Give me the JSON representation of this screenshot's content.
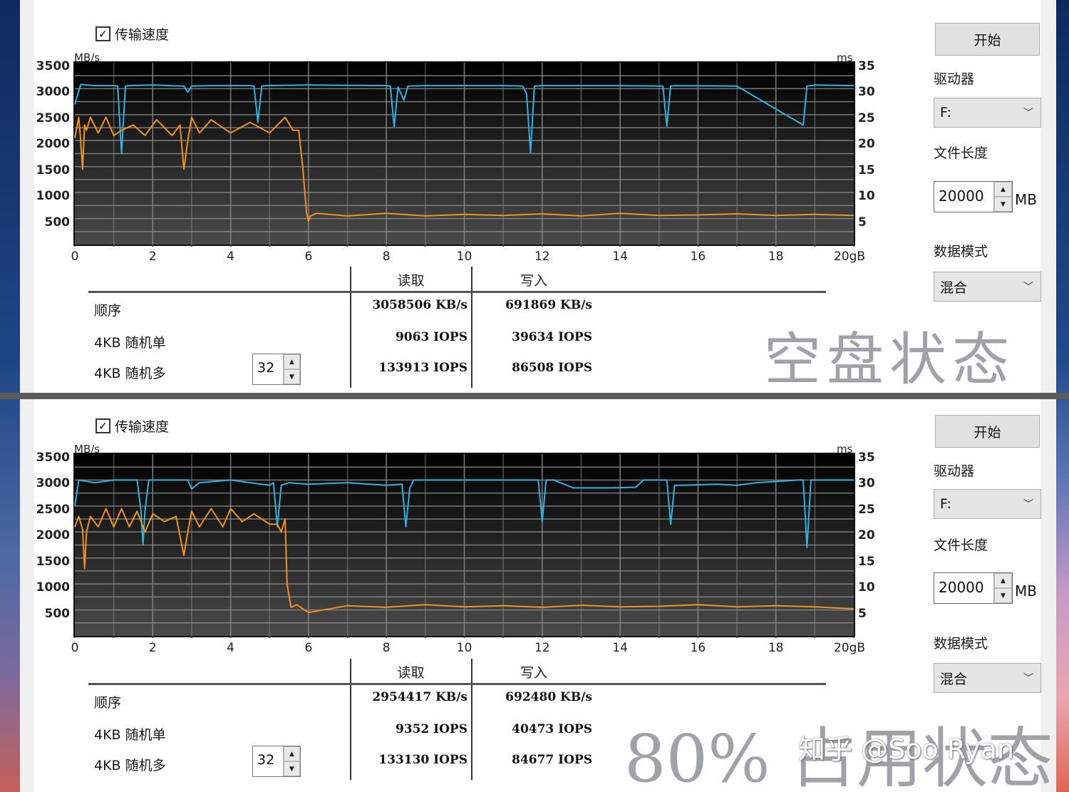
{
  "panels": [
    {
      "id": "top",
      "checkbox_label": "传输速度",
      "checkbox_checked": true,
      "y_unit_left": "MB/s",
      "y_unit_right": "ms",
      "y_ticks_left": [
        "3500",
        "3000",
        "2500",
        "2000",
        "1500",
        "1000",
        "500"
      ],
      "y_ticks_right": [
        "35",
        "30",
        "25",
        "20",
        "15",
        "10",
        "5"
      ],
      "x_ticks": [
        "0",
        "2",
        "4",
        "6",
        "8",
        "10",
        "12",
        "14",
        "16",
        "18",
        "20gB"
      ],
      "results": {
        "col_read": "读取",
        "col_write": "写入",
        "rows": [
          {
            "label": "顺序",
            "read": "3058506 KB/s",
            "write": "691869 KB/s"
          },
          {
            "label": "4KB 随机单",
            "read": "9063 IOPS",
            "write": "39634 IOPS"
          },
          {
            "label": "4KB 随机多",
            "read": "133913 IOPS",
            "write": "86508 IOPS"
          }
        ],
        "queue_depth": "32"
      },
      "side": {
        "start_button": "开始",
        "drive_label": "驱动器",
        "drive_value": "F:",
        "file_size_label": "文件长度",
        "file_size_value": "20000",
        "file_size_unit": "MB",
        "data_mode_label": "数据模式",
        "data_mode_value": "混合"
      },
      "overlay_title": "空盘状态"
    },
    {
      "id": "bottom",
      "checkbox_label": "传输速度",
      "checkbox_checked": true,
      "y_unit_left": "MB/s",
      "y_unit_right": "ms",
      "y_ticks_left": [
        "3500",
        "3000",
        "2500",
        "2000",
        "1500",
        "1000",
        "500"
      ],
      "y_ticks_right": [
        "35",
        "30",
        "25",
        "20",
        "15",
        "10",
        "5"
      ],
      "x_ticks": [
        "0",
        "2",
        "4",
        "6",
        "8",
        "10",
        "12",
        "14",
        "16",
        "18",
        "20gB"
      ],
      "results": {
        "col_read": "读取",
        "col_write": "写入",
        "rows": [
          {
            "label": "顺序",
            "read": "2954417 KB/s",
            "write": "692480 KB/s"
          },
          {
            "label": "4KB 随机单",
            "read": "9352 IOPS",
            "write": "40473 IOPS"
          },
          {
            "label": "4KB 随机多",
            "read": "133130 IOPS",
            "write": "84677 IOPS"
          }
        ],
        "queue_depth": "32"
      },
      "side": {
        "start_button": "开始",
        "drive_label": "驱动器",
        "drive_value": "F:",
        "file_size_label": "文件长度",
        "file_size_value": "20000",
        "file_size_unit": "MB",
        "data_mode_label": "数据模式",
        "data_mode_value": "混合"
      },
      "overlay_title": "80% 占用状态"
    }
  ],
  "watermark": "知乎 @Soo Ryan",
  "colors": {
    "read_line": "#2fb2e0",
    "write_line": "#f0921e",
    "plot_bg_top": "#000000",
    "plot_bg_bottom": "#4a4a4a",
    "grid": "#8a8a8a"
  },
  "chart_data": [
    {
      "type": "line",
      "title": "传输速度 (空盘状态)",
      "xlabel": "gB",
      "ylabel": "MB/s",
      "ylabel_right": "ms",
      "xlim": [
        0,
        20
      ],
      "ylim": [
        0,
        3500
      ],
      "grid": true,
      "series": [
        {
          "name": "读取",
          "color": "#2fb2e0",
          "x": [
            0,
            0.15,
            0.5,
            1.0,
            1.1,
            1.2,
            1.3,
            1.4,
            2.0,
            2.8,
            2.9,
            3.0,
            3.5,
            4.5,
            4.6,
            4.7,
            4.8,
            4.9,
            6.0,
            8.0,
            8.1,
            8.2,
            8.3,
            8.45,
            8.55,
            9.0,
            11.0,
            11.5,
            11.6,
            11.7,
            11.8,
            12.0,
            14.0,
            15.1,
            15.2,
            15.3,
            15.4,
            17.0,
            18.7,
            18.8,
            18.9,
            19.0,
            20.0
          ],
          "values": [
            2700,
            3080,
            3060,
            3060,
            3050,
            1750,
            3050,
            3060,
            3070,
            3050,
            2930,
            3050,
            3060,
            3060,
            3050,
            2350,
            3050,
            3060,
            3070,
            3060,
            3050,
            2270,
            3030,
            2780,
            3050,
            3060,
            3060,
            3050,
            2900,
            1770,
            3050,
            3060,
            3060,
            3050,
            2280,
            3050,
            3060,
            3050,
            2300,
            3050,
            3060,
            3070,
            3060
          ]
        },
        {
          "name": "写入",
          "color": "#f0921e",
          "x": [
            0,
            0.1,
            0.15,
            0.2,
            0.25,
            0.3,
            0.4,
            0.6,
            0.8,
            1.0,
            1.2,
            1.5,
            1.8,
            2.1,
            2.5,
            2.7,
            2.8,
            2.9,
            3.0,
            3.2,
            3.5,
            4.0,
            4.5,
            5.0,
            5.4,
            5.6,
            5.75,
            5.85,
            5.95,
            6.0,
            6.05,
            6.2,
            7.0,
            8.0,
            9.0,
            10.0,
            11.0,
            12.0,
            13.0,
            14.0,
            15.0,
            16.0,
            17.0,
            18.0,
            19.0,
            20.0
          ],
          "values": [
            2050,
            2450,
            2000,
            1450,
            2300,
            2200,
            2450,
            2150,
            2450,
            2100,
            2200,
            2300,
            2100,
            2400,
            2100,
            2300,
            1450,
            2000,
            2450,
            2150,
            2400,
            2150,
            2350,
            2150,
            2450,
            2200,
            2200,
            1500,
            600,
            450,
            550,
            600,
            550,
            600,
            550,
            580,
            560,
            590,
            550,
            600,
            560,
            570,
            590,
            560,
            580,
            560
          ]
        }
      ]
    },
    {
      "type": "line",
      "title": "传输速度 (80% 占用状态)",
      "xlabel": "gB",
      "ylabel": "MB/s",
      "ylabel_right": "ms",
      "xlim": [
        0,
        20
      ],
      "ylim": [
        0,
        3500
      ],
      "grid": true,
      "series": [
        {
          "name": "读取",
          "color": "#2fb2e0",
          "x": [
            0,
            0.1,
            0.5,
            1.0,
            1.6,
            1.7,
            1.75,
            1.8,
            1.9,
            2.5,
            2.9,
            3.0,
            3.2,
            4.0,
            4.5,
            5.0,
            5.1,
            5.2,
            5.3,
            5.5,
            6.0,
            7.0,
            8.0,
            8.4,
            8.5,
            8.6,
            8.7,
            9.0,
            11.0,
            11.9,
            12.0,
            12.1,
            12.3,
            12.8,
            13.2,
            13.8,
            14.4,
            14.6,
            15.2,
            15.3,
            15.4,
            15.6,
            16.5,
            17.0,
            17.5,
            18.6,
            18.7,
            18.8,
            18.9,
            19.0,
            20.0
          ],
          "values": [
            2500,
            3000,
            2950,
            3000,
            3000,
            2400,
            1750,
            2400,
            3000,
            3000,
            3000,
            2830,
            2950,
            3000,
            2950,
            2900,
            2950,
            2100,
            2900,
            2950,
            2920,
            2950,
            2900,
            2920,
            2100,
            2850,
            3000,
            3000,
            3000,
            3000,
            2200,
            3000,
            3000,
            2850,
            2850,
            2850,
            2860,
            3000,
            3000,
            2150,
            2900,
            2900,
            2920,
            2900,
            2950,
            3000,
            3000,
            1700,
            3000,
            3000,
            3000
          ]
        },
        {
          "name": "写入",
          "color": "#f0921e",
          "x": [
            0,
            0.1,
            0.2,
            0.25,
            0.3,
            0.4,
            0.6,
            0.8,
            1.0,
            1.2,
            1.4,
            1.6,
            1.8,
            2.0,
            2.3,
            2.6,
            2.8,
            2.9,
            3.0,
            3.2,
            3.5,
            3.8,
            4.0,
            4.3,
            4.6,
            5.0,
            5.2,
            5.3,
            5.4,
            5.45,
            5.55,
            5.7,
            6.0,
            7.0,
            8.0,
            9.0,
            10.0,
            11.0,
            12.0,
            13.0,
            14.0,
            15.0,
            16.0,
            17.0,
            18.0,
            19.0,
            20.0
          ],
          "values": [
            2100,
            2300,
            2050,
            1300,
            2000,
            2300,
            2100,
            2450,
            2100,
            2450,
            2100,
            2400,
            2000,
            2350,
            2200,
            2300,
            1550,
            2000,
            2400,
            2100,
            2450,
            2100,
            2450,
            2200,
            2350,
            2150,
            2150,
            2000,
            2250,
            1000,
            550,
            600,
            450,
            580,
            550,
            600,
            560,
            580,
            550,
            590,
            560,
            570,
            600,
            560,
            580,
            560,
            520
          ]
        }
      ]
    }
  ]
}
